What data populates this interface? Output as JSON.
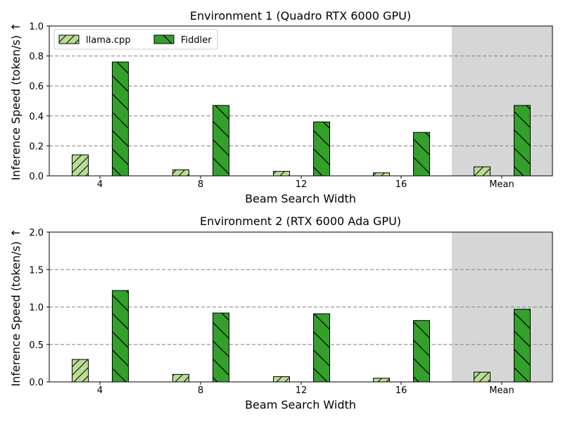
{
  "colors": {
    "llama": "#b8dd95",
    "fiddler": "#33a02c",
    "shade": "#d6d6d6",
    "grid": "#808080"
  },
  "chart_data": [
    {
      "type": "bar",
      "title": "Environment 1 (Quadro RTX 6000 GPU)",
      "xlabel": "Beam Search Width",
      "ylabel": "Inference Speed (token/s) ↑",
      "categories": [
        "4",
        "8",
        "12",
        "16",
        "Mean"
      ],
      "ylim": [
        0,
        1.0
      ],
      "yticks": [
        "0.0",
        "0.2",
        "0.4",
        "0.6",
        "0.8",
        "1.0"
      ],
      "grid": "horizontal dashed",
      "legend": "top-left",
      "shaded_category": "Mean",
      "series": [
        {
          "name": "llama.cpp",
          "values": [
            0.14,
            0.04,
            0.03,
            0.02,
            0.06
          ]
        },
        {
          "name": "Fiddler",
          "values": [
            0.76,
            0.47,
            0.36,
            0.29,
            0.47
          ]
        }
      ]
    },
    {
      "type": "bar",
      "title": "Environment 2 (RTX 6000 Ada GPU)",
      "xlabel": "Beam Search Width",
      "ylabel": "Inference Speed (token/s) ↑",
      "categories": [
        "4",
        "8",
        "12",
        "16",
        "Mean"
      ],
      "ylim": [
        0,
        2.0
      ],
      "yticks": [
        "0.0",
        "0.5",
        "1.0",
        "1.5",
        "2.0"
      ],
      "grid": "horizontal dashed",
      "legend": "none",
      "shaded_category": "Mean",
      "series": [
        {
          "name": "llama.cpp",
          "values": [
            0.3,
            0.1,
            0.07,
            0.05,
            0.13
          ]
        },
        {
          "name": "Fiddler",
          "values": [
            1.22,
            0.92,
            0.91,
            0.82,
            0.97
          ]
        }
      ]
    }
  ]
}
